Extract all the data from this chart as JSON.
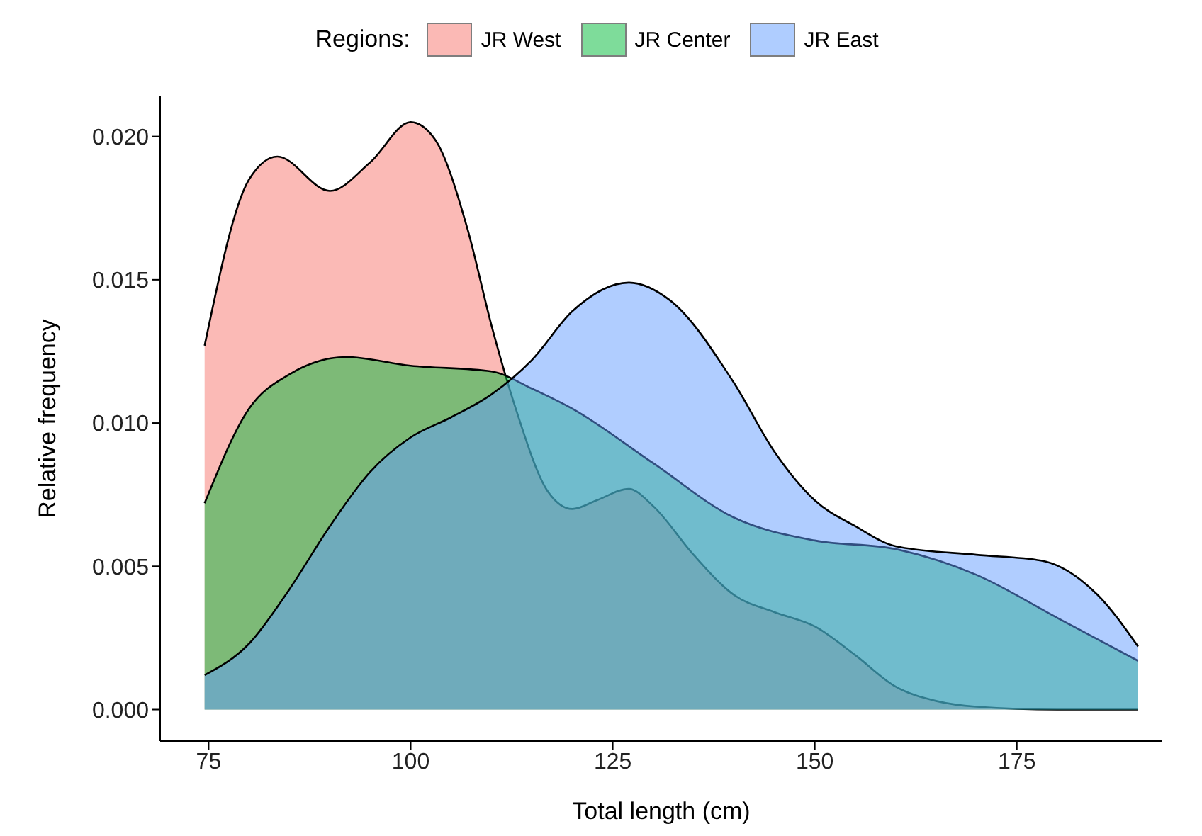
{
  "chart_data": {
    "type": "area",
    "xlabel": "Total length (cm)",
    "ylabel": "Relative frequency",
    "legend_title": "Regions:",
    "legend": "top",
    "xlim": [
      69,
      193
    ],
    "xticks": [
      75,
      100,
      125,
      150,
      175
    ],
    "ylim": [
      -0.0011,
      0.0214
    ],
    "yticks": [
      {
        "value": 0,
        "label": "0.000"
      },
      {
        "value": 0.005,
        "label": "0.005"
      },
      {
        "value": 0.01,
        "label": "0.010"
      },
      {
        "value": 0.015,
        "label": "0.015"
      },
      {
        "value": 0.02,
        "label": "0.020"
      }
    ],
    "grid": false,
    "series": [
      {
        "name": "JR West",
        "color": "#f8766d",
        "x": [
          74.5,
          80,
          83.5,
          90,
          95,
          100,
          103,
          107,
          110,
          113,
          117,
          120,
          123,
          127,
          130,
          135,
          140,
          145,
          150,
          155,
          160,
          165,
          170,
          180,
          190
        ],
        "values": [
          0.0127,
          0.0185,
          0.0193,
          0.0181,
          0.0191,
          0.0205,
          0.0199,
          0.0168,
          0.0134,
          0.0105,
          0.0076,
          0.007,
          0.0073,
          0.0077,
          0.0071,
          0.0054,
          0.004,
          0.0034,
          0.0029,
          0.0019,
          0.0008,
          0.0003,
          0.0001,
          0,
          0
        ]
      },
      {
        "name": "JR Center",
        "color": "#00ba38",
        "x": [
          74.5,
          80,
          85,
          92,
          100,
          110,
          115,
          120,
          130,
          140,
          150,
          160,
          170,
          180,
          190
        ],
        "values": [
          0.0072,
          0.0105,
          0.0117,
          0.0123,
          0.012,
          0.0118,
          0.0112,
          0.0105,
          0.0086,
          0.0067,
          0.0059,
          0.0056,
          0.0047,
          0.0032,
          0.0017
        ]
      },
      {
        "name": "JR East",
        "color": "#619cff",
        "x": [
          74.5,
          80,
          85,
          90,
          95,
          100,
          105,
          110,
          115,
          120,
          127,
          132,
          140,
          145,
          150,
          155,
          160,
          170,
          178,
          185,
          190
        ],
        "values": [
          0.0012,
          0.0023,
          0.0042,
          0.0064,
          0.0083,
          0.0095,
          0.0102,
          0.011,
          0.0122,
          0.0139,
          0.0149,
          0.0143,
          0.0114,
          0.009,
          0.0073,
          0.0064,
          0.0057,
          0.0054,
          0.0052,
          0.004,
          0.0022
        ]
      }
    ]
  }
}
